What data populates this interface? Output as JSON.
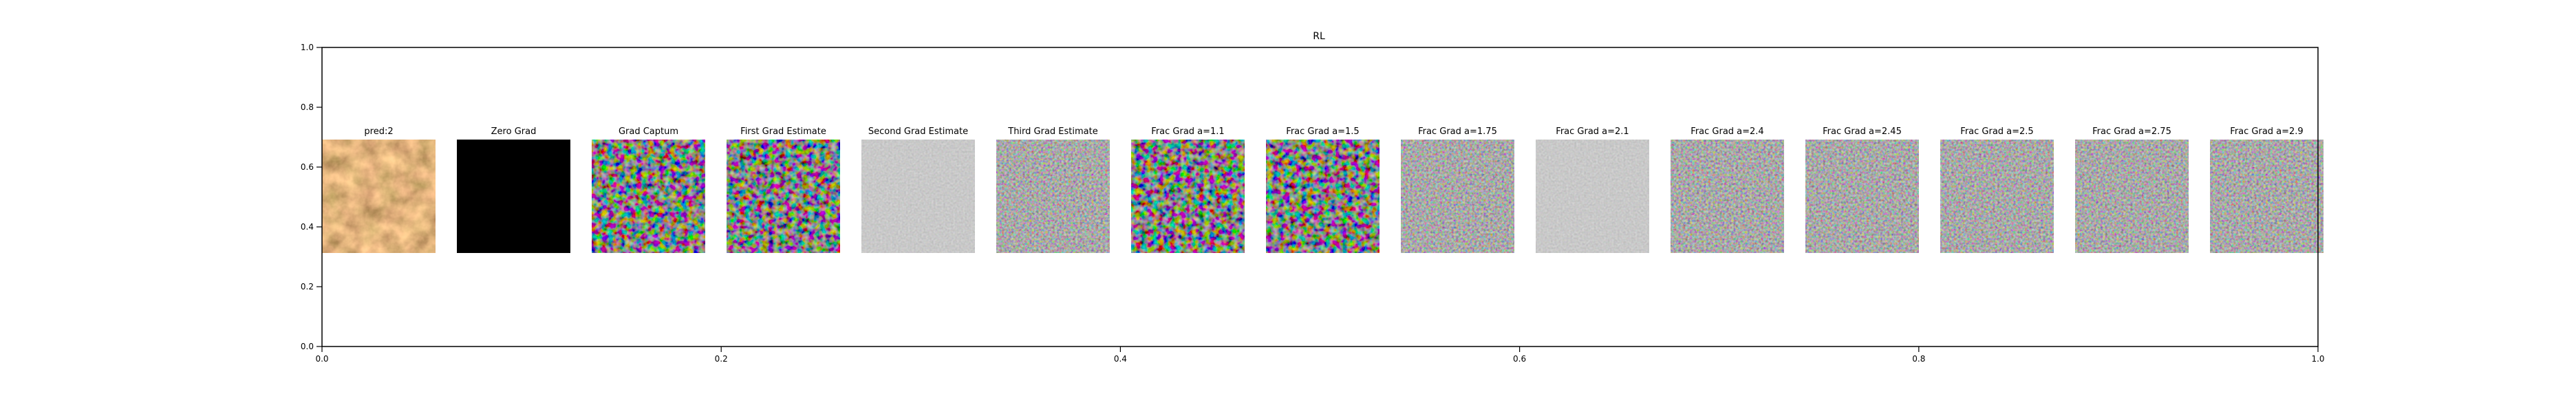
{
  "chart_data": {
    "type": "image_grid",
    "title": "RL",
    "panels": [
      "pred:2",
      "Zero Grad",
      "Grad Captum",
      "First Grad Estimate",
      "Second Grad Estimate",
      "Third Grad Estimate",
      "Frac Grad a=1.1",
      "Frac Grad a=1.5",
      "Frac Grad a=1.75",
      "Frac Grad a=2.1",
      "Frac Grad a=2.4",
      "Frac Grad a=2.45",
      "Frac Grad a=2.5",
      "Frac Grad a=2.75",
      "Frac Grad a=2.9"
    ],
    "xlim": [
      0,
      1
    ],
    "ylim": [
      0,
      1
    ],
    "xticks": [
      {
        "value": 0,
        "label": "0.0"
      },
      0.2,
      0.4,
      0.6,
      0.8,
      {
        "value": 1,
        "label": "1.0"
      }
    ],
    "yticks": [
      {
        "value": 0,
        "label": "0.0"
      },
      0.2,
      0.4,
      0.6,
      0.8,
      {
        "value": 1,
        "label": "1.0"
      }
    ]
  }
}
